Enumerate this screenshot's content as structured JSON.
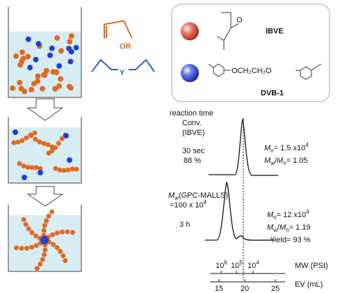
{
  "monomers": {
    "vinyl_ether": "OR",
    "divinyl": "Y"
  },
  "legend": {
    "ibve": "IBVE",
    "dvb": "DVB-1",
    "dvb_linker": "OCH₂CH₂O"
  },
  "gpc": {
    "header": [
      "reaction time",
      "Conv.",
      "(IBVE)"
    ],
    "trace1": {
      "time": "30 sec",
      "conv": "88 %",
      "mn": {
        "symbol": "M",
        "sub": "n",
        "text": "= 1.5 x10",
        "sup": "4"
      },
      "pdi": {
        "text": "= 1.05"
      }
    },
    "trace2": {
      "time": "3 h",
      "mw_malls": {
        "symbol": "M",
        "sub": "w",
        "text": "(GPC-MALLS)",
        "line2": "=100 x 10",
        "sup": "4"
      },
      "mn": {
        "symbol": "M",
        "sub": "n",
        "text": "= 12 x10",
        "sup": "4"
      },
      "pdi": {
        "text": "= 1.19"
      },
      "yield": "Yield= 93 %"
    },
    "mw_ticks": [
      {
        "base": "10",
        "exp": "6"
      },
      {
        "base": "10",
        "exp": "5"
      },
      {
        "base": "10",
        "exp": "4"
      }
    ],
    "mw_label": "MW (PSt)",
    "ev_ticks": [
      "15",
      "20",
      "25"
    ],
    "ev_label": "EV (mL)"
  }
}
